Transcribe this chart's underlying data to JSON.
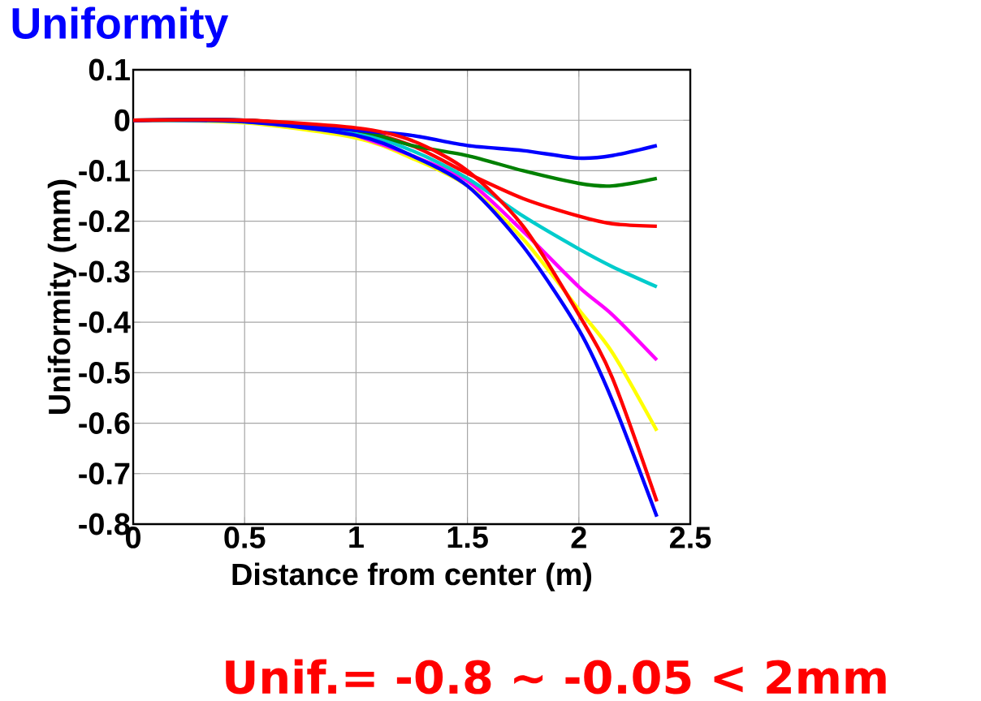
{
  "chart_data": {
    "type": "line",
    "title": "Uniformity",
    "xlabel": "Distance from center (m)",
    "ylabel": "Uniformity (mm)",
    "annotations": [
      "Unif.= -0.8 ∼ -0.05 < 2mm"
    ],
    "x": [
      0,
      0.5,
      1,
      1.25,
      1.5,
      1.75,
      2,
      2.15,
      2.35
    ],
    "xlim": [
      0,
      2.5
    ],
    "xticks": [
      0,
      0.5,
      1,
      1.5,
      2,
      2.5
    ],
    "ylim": [
      -0.8,
      0.1
    ],
    "yticks": [
      0.1,
      0,
      -0.1,
      -0.2,
      -0.3,
      -0.4,
      -0.5,
      -0.6,
      -0.7,
      -0.8
    ],
    "grid": true,
    "line_style": "solid",
    "marker": "none",
    "series": [
      {
        "color": "#ffff00",
        "values": [
          0,
          -0.005,
          -0.035,
          -0.075,
          -0.13,
          -0.235,
          -0.375,
          -0.46,
          -0.615
        ]
      },
      {
        "color": "#ff00ff",
        "values": [
          null,
          null,
          -0.03,
          -0.07,
          -0.12,
          -0.22,
          -0.33,
          -0.385,
          -0.475
        ]
      },
      {
        "color": "#00cccc",
        "values": [
          0,
          -0.003,
          -0.025,
          -0.06,
          -0.115,
          -0.19,
          -0.255,
          -0.29,
          -0.33
        ]
      },
      {
        "color": "#ff0000",
        "values": [
          0,
          0,
          -0.02,
          -0.05,
          -0.105,
          -0.155,
          -0.19,
          -0.205,
          -0.21
        ]
      },
      {
        "color": "#008000",
        "values": [
          0,
          0,
          -0.02,
          -0.05,
          -0.07,
          -0.1,
          -0.125,
          -0.13,
          -0.115
        ]
      },
      {
        "color": "#0000ff",
        "values": [
          0,
          0,
          -0.02,
          -0.03,
          -0.05,
          -0.06,
          -0.075,
          -0.07,
          -0.05
        ]
      },
      {
        "color": "#0000ff",
        "values": [
          0,
          -0.003,
          -0.03,
          -0.07,
          -0.13,
          -0.25,
          -0.415,
          -0.555,
          -0.785
        ]
      },
      {
        "color": "#ff0000",
        "values": [
          0,
          0,
          -0.015,
          -0.04,
          -0.1,
          -0.21,
          -0.385,
          -0.51,
          -0.755
        ]
      }
    ]
  }
}
